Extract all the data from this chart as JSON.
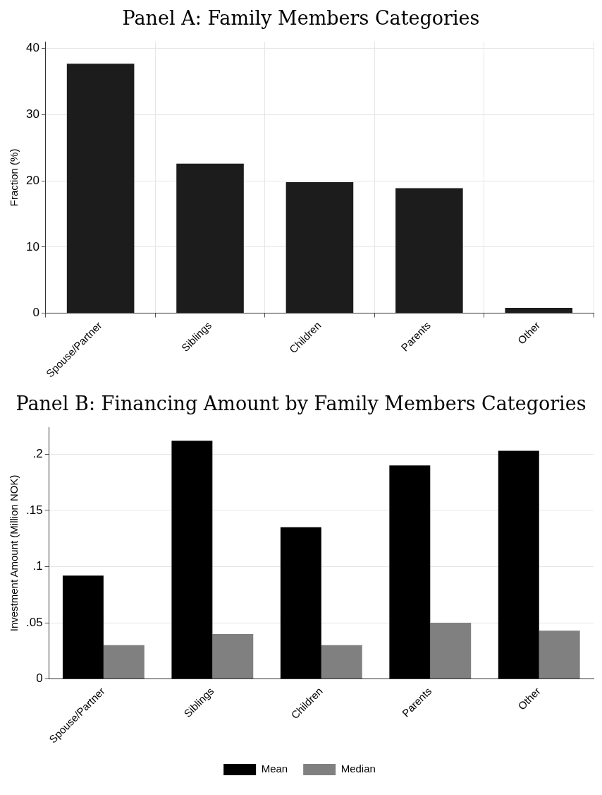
{
  "chart_data": [
    {
      "type": "bar",
      "title": "Panel A: Family Members Categories",
      "ylabel": "Fraction (%)",
      "categories": [
        "Spouse/Partner",
        "Siblings",
        "Children",
        "Parents",
        "Other"
      ],
      "values": [
        37.7,
        22.6,
        19.8,
        18.9,
        0.8
      ],
      "color": "#1c1c1c",
      "ylim": [
        0,
        41
      ],
      "yticks": [
        0,
        10,
        20,
        30,
        40
      ],
      "grid": true,
      "legend": false
    },
    {
      "type": "bar",
      "title": "Panel B: Financing Amount by Family Members Categories",
      "ylabel": "Investment Amount (Million NOK)",
      "categories": [
        "Spouse/Partner",
        "Siblings",
        "Children",
        "Parents",
        "Other"
      ],
      "series": [
        {
          "name": "Mean",
          "color": "#000000",
          "values": [
            0.092,
            0.212,
            0.135,
            0.19,
            0.203
          ]
        },
        {
          "name": "Median",
          "color": "#808080",
          "values": [
            0.03,
            0.04,
            0.03,
            0.05,
            0.043
          ]
        }
      ],
      "ylim": [
        0,
        0.224
      ],
      "yticks": [
        0,
        {
          "value": 0.05,
          "label": ".05"
        },
        {
          "value": 0.1,
          "label": ".1"
        },
        {
          "value": 0.15,
          "label": ".15"
        },
        {
          "value": 0.2,
          "label": ".2"
        }
      ],
      "grid": "y",
      "legend": "bottom"
    }
  ]
}
